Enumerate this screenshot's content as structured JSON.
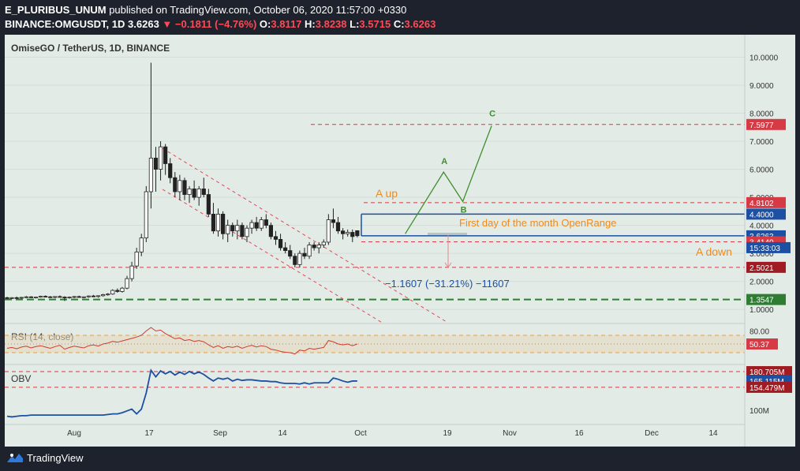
{
  "header": {
    "author": "E_PLURIBUS_UNUM",
    "published": "published on TradingView.com, October 06, 2020 11:57:00 +0330",
    "symbol": "BINANCE:OMGUSDT, 1D",
    "price": "3.6263",
    "change": "−0.1811 (−4.76%)",
    "o_label": "O:",
    "o_value": "3.8117",
    "h_label": "H:",
    "h_value": "3.8238",
    "l_label": "L:",
    "l_value": "3.5715",
    "c_label": "C:",
    "c_value": "3.6263"
  },
  "colors": {
    "background": "#1e222d",
    "chart_bg": "#e3ebe6",
    "accent_red": "#ff4a55",
    "blue": "#1d4fa3",
    "green": "#3f8f2f",
    "orange": "#f08a1c"
  },
  "footer": {
    "brand": "TradingView",
    "logo_icon": "tradingview-logo-icon"
  },
  "chart_data": {
    "type": "candlestick",
    "title": "OmiseGO / TetherUS, 1D, BINANCE",
    "price_axis": [
      "10.0000",
      "9.0000",
      "8.0000",
      "7.0000",
      "6.0000",
      "5.0000",
      "4.0000",
      "3.0000",
      "2.0000",
      "1.0000"
    ],
    "ylim": [
      0.5,
      10.8
    ],
    "time_axis": [
      "Aug",
      "17",
      "Sep",
      "14",
      "Oct",
      "19",
      "Nov",
      "16",
      "Dec",
      "14"
    ],
    "candles": [
      [
        1.42,
        1.45,
        1.38,
        1.4
      ],
      [
        1.4,
        1.44,
        1.37,
        1.42
      ],
      [
        1.42,
        1.46,
        1.39,
        1.41
      ],
      [
        1.41,
        1.45,
        1.38,
        1.43
      ],
      [
        1.43,
        1.48,
        1.4,
        1.45
      ],
      [
        1.45,
        1.47,
        1.41,
        1.42
      ],
      [
        1.42,
        1.45,
        1.39,
        1.44
      ],
      [
        1.44,
        1.49,
        1.42,
        1.47
      ],
      [
        1.47,
        1.5,
        1.43,
        1.45
      ],
      [
        1.45,
        1.48,
        1.41,
        1.43
      ],
      [
        1.43,
        1.47,
        1.4,
        1.46
      ],
      [
        1.46,
        1.5,
        1.43,
        1.44
      ],
      [
        1.44,
        1.47,
        1.3,
        1.42
      ],
      [
        1.42,
        1.46,
        1.38,
        1.44
      ],
      [
        1.44,
        1.48,
        1.4,
        1.46
      ],
      [
        1.46,
        1.49,
        1.42,
        1.43
      ],
      [
        1.43,
        1.46,
        1.4,
        1.45
      ],
      [
        1.45,
        1.5,
        1.42,
        1.48
      ],
      [
        1.48,
        1.52,
        1.44,
        1.46
      ],
      [
        1.46,
        1.5,
        1.42,
        1.49
      ],
      [
        1.49,
        1.56,
        1.46,
        1.53
      ],
      [
        1.53,
        1.58,
        1.49,
        1.55
      ],
      [
        1.55,
        1.72,
        1.52,
        1.68
      ],
      [
        1.68,
        1.75,
        1.6,
        1.64
      ],
      [
        1.64,
        1.8,
        1.6,
        1.76
      ],
      [
        1.76,
        2.2,
        1.72,
        2.1
      ],
      [
        2.1,
        2.7,
        2.0,
        2.55
      ],
      [
        2.55,
        3.2,
        2.45,
        3.05
      ],
      [
        3.05,
        3.7,
        2.9,
        3.55
      ],
      [
        3.55,
        5.4,
        3.4,
        5.2
      ],
      [
        5.2,
        9.8,
        4.6,
        6.4
      ],
      [
        6.4,
        6.8,
        5.2,
        6.0
      ],
      [
        6.0,
        7.0,
        5.6,
        6.8
      ],
      [
        6.8,
        6.9,
        5.8,
        6.2
      ],
      [
        6.2,
        6.4,
        5.5,
        5.7
      ],
      [
        5.7,
        5.9,
        5.0,
        5.2
      ],
      [
        5.2,
        5.8,
        4.9,
        5.6
      ],
      [
        5.6,
        5.7,
        4.9,
        5.1
      ],
      [
        5.1,
        5.4,
        4.8,
        5.3
      ],
      [
        5.3,
        5.6,
        4.9,
        5.0
      ],
      [
        5.0,
        5.4,
        4.7,
        5.3
      ],
      [
        5.3,
        5.7,
        5.0,
        5.1
      ],
      [
        5.1,
        5.3,
        4.3,
        4.4
      ],
      [
        4.4,
        4.8,
        3.7,
        3.8
      ],
      [
        3.8,
        4.6,
        3.6,
        4.4
      ],
      [
        4.4,
        4.5,
        3.5,
        3.7
      ],
      [
        3.7,
        4.2,
        3.4,
        4.0
      ],
      [
        4.0,
        4.1,
        3.6,
        3.8
      ],
      [
        3.8,
        4.2,
        3.5,
        4.0
      ],
      [
        4.0,
        4.1,
        3.5,
        3.6
      ],
      [
        3.6,
        4.0,
        3.4,
        3.9
      ],
      [
        3.9,
        4.2,
        3.7,
        4.1
      ],
      [
        4.1,
        4.3,
        3.8,
        3.9
      ],
      [
        3.9,
        4.3,
        3.8,
        4.2
      ],
      [
        4.2,
        4.4,
        3.9,
        4.0
      ],
      [
        4.0,
        4.1,
        3.5,
        3.6
      ],
      [
        3.6,
        3.8,
        3.3,
        3.5
      ],
      [
        3.5,
        3.7,
        3.1,
        3.2
      ],
      [
        3.2,
        3.4,
        3.0,
        3.1
      ],
      [
        3.1,
        3.3,
        2.8,
        2.9
      ],
      [
        2.9,
        3.0,
        2.5,
        2.6
      ],
      [
        2.6,
        3.1,
        2.5,
        3.0
      ],
      [
        3.0,
        3.2,
        2.8,
        2.9
      ],
      [
        2.9,
        3.4,
        2.8,
        3.3
      ],
      [
        3.3,
        3.4,
        3.1,
        3.2
      ],
      [
        3.2,
        3.4,
        3.0,
        3.3
      ],
      [
        3.3,
        3.5,
        3.2,
        3.4
      ],
      [
        3.4,
        4.4,
        3.3,
        4.2
      ],
      [
        4.2,
        4.6,
        3.9,
        4.1
      ],
      [
        4.1,
        4.3,
        3.7,
        3.8
      ],
      [
        3.8,
        3.9,
        3.5,
        3.7
      ],
      [
        3.7,
        3.85,
        3.6,
        3.75
      ],
      [
        3.75,
        3.85,
        3.4,
        3.6
      ],
      [
        3.81,
        3.82,
        3.57,
        3.63
      ]
    ],
    "price_levels": [
      {
        "label": "7.5977",
        "value": 7.5977,
        "style": "dashed-red"
      },
      {
        "label": "4.8102",
        "value": 4.8102,
        "style": "dashed-red"
      },
      {
        "label": "4.4000",
        "value": 4.4,
        "style": "solid-blue"
      },
      {
        "label": "3.6263",
        "value": 3.6263,
        "style": "solid-blue"
      },
      {
        "label": "3.4140",
        "value": 3.414,
        "style": "dashed-red"
      },
      {
        "label": "2.5021",
        "value": 2.5021,
        "style": "dashed-red"
      },
      {
        "label": "1.3547",
        "value": 1.3547,
        "style": "dashed-green"
      }
    ],
    "countdown": "15:33:03",
    "annotations": {
      "a_up": "A up",
      "a_down": "A down",
      "openrange": "First day of the month OpenRange",
      "measure": "−1.1607 (−31.21%) −11607",
      "wave_a": "A",
      "wave_b": "B",
      "wave_c": "C"
    },
    "projection": [
      {
        "bar": 83,
        "price": 3.7
      },
      {
        "bar": 91,
        "price": 5.9
      },
      {
        "bar": 95,
        "price": 4.85
      },
      {
        "bar": 101,
        "price": 7.55
      }
    ],
    "rsi": {
      "label": "RSI (14, close)",
      "axis_label": "80.00",
      "value_label": "50.37",
      "overbought": 70,
      "oversold": 30,
      "values": [
        40,
        42,
        39,
        43,
        45,
        41,
        44,
        46,
        43,
        40,
        44,
        47,
        38,
        42,
        45,
        43,
        41,
        46,
        48,
        45,
        50,
        52,
        56,
        54,
        57,
        60,
        63,
        66,
        70,
        80,
        88,
        80,
        82,
        74,
        68,
        62,
        64,
        58,
        60,
        56,
        58,
        55,
        48,
        42,
        46,
        40,
        44,
        42,
        45,
        40,
        44,
        47,
        43,
        46,
        44,
        38,
        36,
        33,
        31,
        30,
        27,
        36,
        34,
        40,
        38,
        40,
        42,
        58,
        55,
        50,
        48,
        50,
        46,
        50
      ]
    },
    "obv": {
      "label": "OBV",
      "axis_labels": {
        "high": "180.705M",
        "current": "165.115M",
        "low": "154.479M",
        "base": "100M"
      },
      "values": [
        106,
        105,
        106,
        107,
        107,
        108,
        108,
        108,
        108,
        108,
        108,
        108,
        108,
        108,
        108,
        108,
        108,
        108,
        108,
        108,
        108,
        109,
        110,
        110,
        112,
        115,
        118,
        110,
        118,
        145,
        183,
        172,
        182,
        177,
        181,
        175,
        180,
        176,
        181,
        177,
        180,
        176,
        170,
        165,
        170,
        168,
        170,
        165,
        168,
        166,
        167,
        167,
        166,
        165,
        165,
        164,
        164,
        162,
        161,
        161,
        161,
        160,
        162,
        160,
        162,
        162,
        162,
        162,
        170,
        168,
        165,
        163,
        165,
        165
      ]
    }
  }
}
